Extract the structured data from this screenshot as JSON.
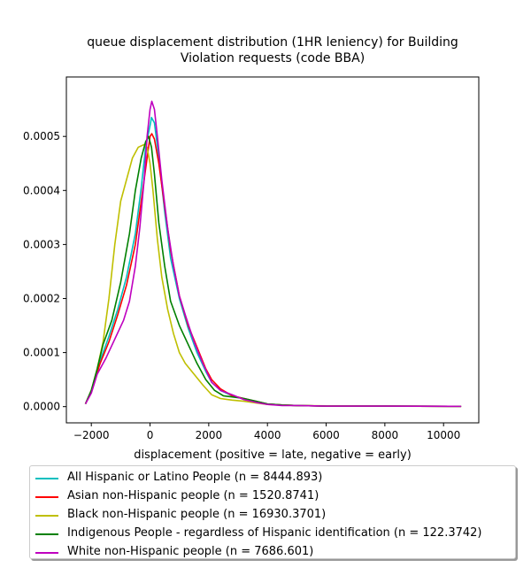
{
  "chart_data": {
    "type": "line",
    "title": "queue displacement distribution (1HR leniency) for Building Violation  requests (code BBA)",
    "title_lines": [
      "queue displacement distribution (1HR leniency) for Building",
      "Violation  requests (code BBA)"
    ],
    "xlabel": "displacement (positive = late, negative = early)",
    "ylabel": "",
    "xlim": [
      -2850,
      11200
    ],
    "ylim": [
      -3e-05,
      0.00061
    ],
    "xticks": [
      -2000,
      0,
      2000,
      4000,
      6000,
      8000,
      10000
    ],
    "yticks": [
      0.0,
      0.0001,
      0.0002,
      0.0003,
      0.0004,
      0.0005
    ],
    "ytick_labels": [
      "0.0000",
      "0.0001",
      "0.0002",
      "0.0003",
      "0.0004",
      "0.0005"
    ],
    "grid": false,
    "legend_position": "below",
    "series": [
      {
        "name": "All Hispanic or Latino People (n = 8444.893)",
        "color": "#00bfbf",
        "points": [
          [
            -2200,
            5e-06
          ],
          [
            -2000,
            3e-05
          ],
          [
            -1700,
            8.5e-05
          ],
          [
            -1400,
            0.00013
          ],
          [
            -1100,
            0.00018
          ],
          [
            -800,
            0.00024
          ],
          [
            -500,
            0.00032
          ],
          [
            -300,
            0.000405
          ],
          [
            -150,
            0.00048
          ],
          [
            0,
            0.00052
          ],
          [
            50,
            0.000535
          ],
          [
            150,
            0.000525
          ],
          [
            300,
            0.00046
          ],
          [
            500,
            0.00036
          ],
          [
            700,
            0.000275
          ],
          [
            1000,
            0.0002
          ],
          [
            1300,
            0.000145
          ],
          [
            1600,
            0.0001
          ],
          [
            1900,
            6.5e-05
          ],
          [
            2100,
            4.5e-05
          ],
          [
            2400,
            3e-05
          ],
          [
            2800,
            2e-05
          ],
          [
            3200,
            1.5e-05
          ],
          [
            3600,
            1e-05
          ],
          [
            4000,
            5e-06
          ],
          [
            4500,
            3e-06
          ],
          [
            5000,
            2e-06
          ],
          [
            6000,
            1e-06
          ],
          [
            8000,
            1e-06
          ],
          [
            10600,
            5e-07
          ]
        ]
      },
      {
        "name": "Asian non-Hispanic people (n = 1520.8741)",
        "color": "#ff0000",
        "points": [
          [
            -2200,
            5e-06
          ],
          [
            -2000,
            3e-05
          ],
          [
            -1700,
            8e-05
          ],
          [
            -1400,
            0.00012
          ],
          [
            -1100,
            0.00017
          ],
          [
            -800,
            0.000225
          ],
          [
            -500,
            0.0003
          ],
          [
            -300,
            0.00038
          ],
          [
            -100,
            0.00046
          ],
          [
            0,
            0.0005
          ],
          [
            60,
            0.000505
          ],
          [
            150,
            0.000495
          ],
          [
            300,
            0.00045
          ],
          [
            500,
            0.00037
          ],
          [
            700,
            0.00029
          ],
          [
            1000,
            0.000205
          ],
          [
            1300,
            0.00015
          ],
          [
            1600,
            0.00011
          ],
          [
            1900,
            7e-05
          ],
          [
            2100,
            5e-05
          ],
          [
            2400,
            3.3e-05
          ],
          [
            2800,
            2e-05
          ],
          [
            3200,
            1.5e-05
          ],
          [
            3600,
            1e-05
          ],
          [
            4000,
            5e-06
          ],
          [
            4500,
            3e-06
          ],
          [
            5000,
            2e-06
          ],
          [
            6000,
            1e-06
          ],
          [
            8000,
            1e-06
          ],
          [
            10600,
            5e-07
          ]
        ]
      },
      {
        "name": "Black non-Hispanic people (n = 16930.3701)",
        "color": "#bfbf00",
        "points": [
          [
            -2200,
            5e-06
          ],
          [
            -2000,
            3e-05
          ],
          [
            -1800,
            7e-05
          ],
          [
            -1600,
            0.00012
          ],
          [
            -1400,
            0.0002
          ],
          [
            -1200,
            0.0003
          ],
          [
            -1000,
            0.00038
          ],
          [
            -800,
            0.00042
          ],
          [
            -600,
            0.00046
          ],
          [
            -400,
            0.00048
          ],
          [
            -200,
            0.000485
          ],
          [
            -100,
            0.00048
          ],
          [
            0,
            0.00045
          ],
          [
            100,
            0.0004
          ],
          [
            250,
            0.00031
          ],
          [
            400,
            0.00024
          ],
          [
            600,
            0.00018
          ],
          [
            800,
            0.000135
          ],
          [
            1000,
            0.0001
          ],
          [
            1200,
            8e-05
          ],
          [
            1500,
            6e-05
          ],
          [
            1800,
            4e-05
          ],
          [
            2100,
            2.2e-05
          ],
          [
            2400,
            1.5e-05
          ],
          [
            2800,
            1.2e-05
          ],
          [
            3200,
            1e-05
          ],
          [
            3600,
            7e-06
          ],
          [
            4000,
            4e-06
          ],
          [
            5000,
            2e-06
          ],
          [
            7000,
            1e-06
          ],
          [
            10600,
            5e-07
          ]
        ]
      },
      {
        "name": "Indigenous People - regardless of Hispanic identification (n = 122.3742)",
        "color": "#008000",
        "points": [
          [
            -2200,
            5e-06
          ],
          [
            -2000,
            3e-05
          ],
          [
            -1800,
            7e-05
          ],
          [
            -1600,
            0.000115
          ],
          [
            -1300,
            0.00016
          ],
          [
            -1000,
            0.00023
          ],
          [
            -700,
            0.00032
          ],
          [
            -500,
            0.0004
          ],
          [
            -300,
            0.00046
          ],
          [
            -150,
            0.00049
          ],
          [
            -50,
            0.0005
          ],
          [
            50,
            0.00048
          ],
          [
            150,
            0.00043
          ],
          [
            300,
            0.00034
          ],
          [
            500,
            0.00026
          ],
          [
            700,
            0.000195
          ],
          [
            1000,
            0.00015
          ],
          [
            1300,
            0.000115
          ],
          [
            1600,
            8e-05
          ],
          [
            1900,
            5e-05
          ],
          [
            2200,
            3e-05
          ],
          [
            2500,
            2e-05
          ],
          [
            2800,
            1.8e-05
          ],
          [
            3200,
            1.5e-05
          ],
          [
            3600,
            1e-05
          ],
          [
            4000,
            5e-06
          ],
          [
            4500,
            3e-06
          ],
          [
            5000,
            2e-06
          ],
          [
            6000,
            1e-06
          ],
          [
            8000,
            1e-06
          ],
          [
            10600,
            5e-07
          ]
        ]
      },
      {
        "name": "White non-Hispanic people (n = 7686.601)",
        "color": "#bf00bf",
        "points": [
          [
            -2200,
            5e-06
          ],
          [
            -2000,
            2.5e-05
          ],
          [
            -1800,
            6e-05
          ],
          [
            -1500,
            9e-05
          ],
          [
            -1200,
            0.000125
          ],
          [
            -900,
            0.00016
          ],
          [
            -700,
            0.000195
          ],
          [
            -500,
            0.00026
          ],
          [
            -350,
            0.00033
          ],
          [
            -200,
            0.00042
          ],
          [
            -100,
            0.0005
          ],
          [
            0,
            0.00055
          ],
          [
            60,
            0.000565
          ],
          [
            150,
            0.00055
          ],
          [
            250,
            0.0005
          ],
          [
            400,
            0.00042
          ],
          [
            600,
            0.00033
          ],
          [
            800,
            0.00026
          ],
          [
            1000,
            0.000205
          ],
          [
            1200,
            0.00017
          ],
          [
            1500,
            0.00012
          ],
          [
            1800,
            8e-05
          ],
          [
            2100,
            4.5e-05
          ],
          [
            2400,
            3e-05
          ],
          [
            2800,
            2.2e-05
          ],
          [
            3200,
            1.3e-05
          ],
          [
            3600,
            8e-06
          ],
          [
            4000,
            4e-06
          ],
          [
            4500,
            2e-06
          ],
          [
            5000,
            2e-06
          ],
          [
            6000,
            1e-06
          ],
          [
            8000,
            1e-06
          ],
          [
            10600,
            5e-07
          ]
        ]
      }
    ]
  }
}
